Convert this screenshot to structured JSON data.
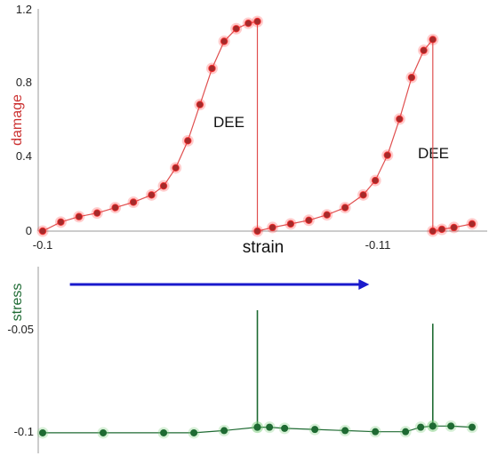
{
  "chart_data": [
    {
      "type": "line",
      "ylabel": "damage",
      "xlabel": "strain",
      "xlim": [
        -0.1,
        -0.1147
      ],
      "ylim": [
        0,
        1.2
      ],
      "y_ticks": [
        "1.2",
        "0.8",
        "0.4",
        "0"
      ],
      "x_ticks": [
        "-0.1",
        "-0.11"
      ],
      "annotations": [
        "DEE",
        "DEE"
      ],
      "colors": {
        "point_fill": "#a52a2a",
        "point_halo": "#ff3333",
        "line": "#e05050",
        "label": "#cc3333"
      },
      "segments": [
        {
          "x": [
            -0.1,
            -0.1006,
            -0.1012,
            -0.1018,
            -0.1024,
            -0.103,
            -0.1036,
            -0.104,
            -0.1044,
            -0.1048,
            -0.1052,
            -0.1056,
            -0.106,
            -0.1064,
            -0.1068,
            -0.1071
          ],
          "y": [
            0,
            0.05,
            0.08,
            0.1,
            0.13,
            0.16,
            0.2,
            0.25,
            0.35,
            0.5,
            0.7,
            0.9,
            1.05,
            1.12,
            1.15,
            1.16
          ]
        },
        {
          "x": [
            -0.1071,
            -0.1071
          ],
          "y": [
            1.16,
            0
          ]
        },
        {
          "x": [
            -0.1071,
            -0.1076,
            -0.1082,
            -0.1088,
            -0.1094,
            -0.11,
            -0.1106,
            -0.111,
            -0.1114,
            -0.1118,
            -0.1122,
            -0.1126,
            -0.1129
          ],
          "y": [
            0,
            0.02,
            0.04,
            0.06,
            0.09,
            0.13,
            0.2,
            0.28,
            0.42,
            0.62,
            0.85,
            1.0,
            1.06
          ]
        },
        {
          "x": [
            -0.1129,
            -0.1129
          ],
          "y": [
            1.06,
            0
          ]
        },
        {
          "x": [
            -0.1129,
            -0.1132,
            -0.1136,
            -0.1142
          ],
          "y": [
            0,
            0.01,
            0.02,
            0.04
          ]
        }
      ]
    },
    {
      "type": "line",
      "ylabel": "stress",
      "xlim": [
        -0.1,
        -0.1147
      ],
      "ylim": [
        -0.102,
        -0.038
      ],
      "y_ticks": [
        "-0.05",
        "-0.1"
      ],
      "colors": {
        "point_fill": "#1e6a32",
        "point_halo": "#7ccc7c",
        "line": "#1e6a32",
        "label": "#1f6b34"
      },
      "segments": [
        {
          "x": [
            -0.1,
            -0.102,
            -0.104,
            -0.105,
            -0.106,
            -0.1071
          ],
          "y": [
            -0.1,
            -0.1,
            -0.1,
            -0.1,
            -0.099,
            -0.0975
          ]
        },
        {
          "x": [
            -0.1071,
            -0.1075,
            -0.108,
            -0.109,
            -0.11,
            -0.111,
            -0.112,
            -0.1125,
            -0.1129
          ],
          "y": [
            -0.0975,
            -0.0975,
            -0.098,
            -0.0985,
            -0.099,
            -0.0995,
            -0.0995,
            -0.0975,
            -0.097
          ]
        },
        {
          "x": [
            -0.1129,
            -0.1135,
            -0.1142
          ],
          "y": [
            -0.097,
            -0.097,
            -0.0975
          ]
        }
      ],
      "spikes": [
        {
          "x": -0.1071,
          "y_top": -0.0455,
          "y_base": -0.0975
        },
        {
          "x": -0.1129,
          "y_top": -0.0515,
          "y_base": -0.097
        }
      ]
    }
  ],
  "arrow": {
    "from_x": -0.1009,
    "to_x": -0.1108,
    "color": "#1a1acc"
  }
}
